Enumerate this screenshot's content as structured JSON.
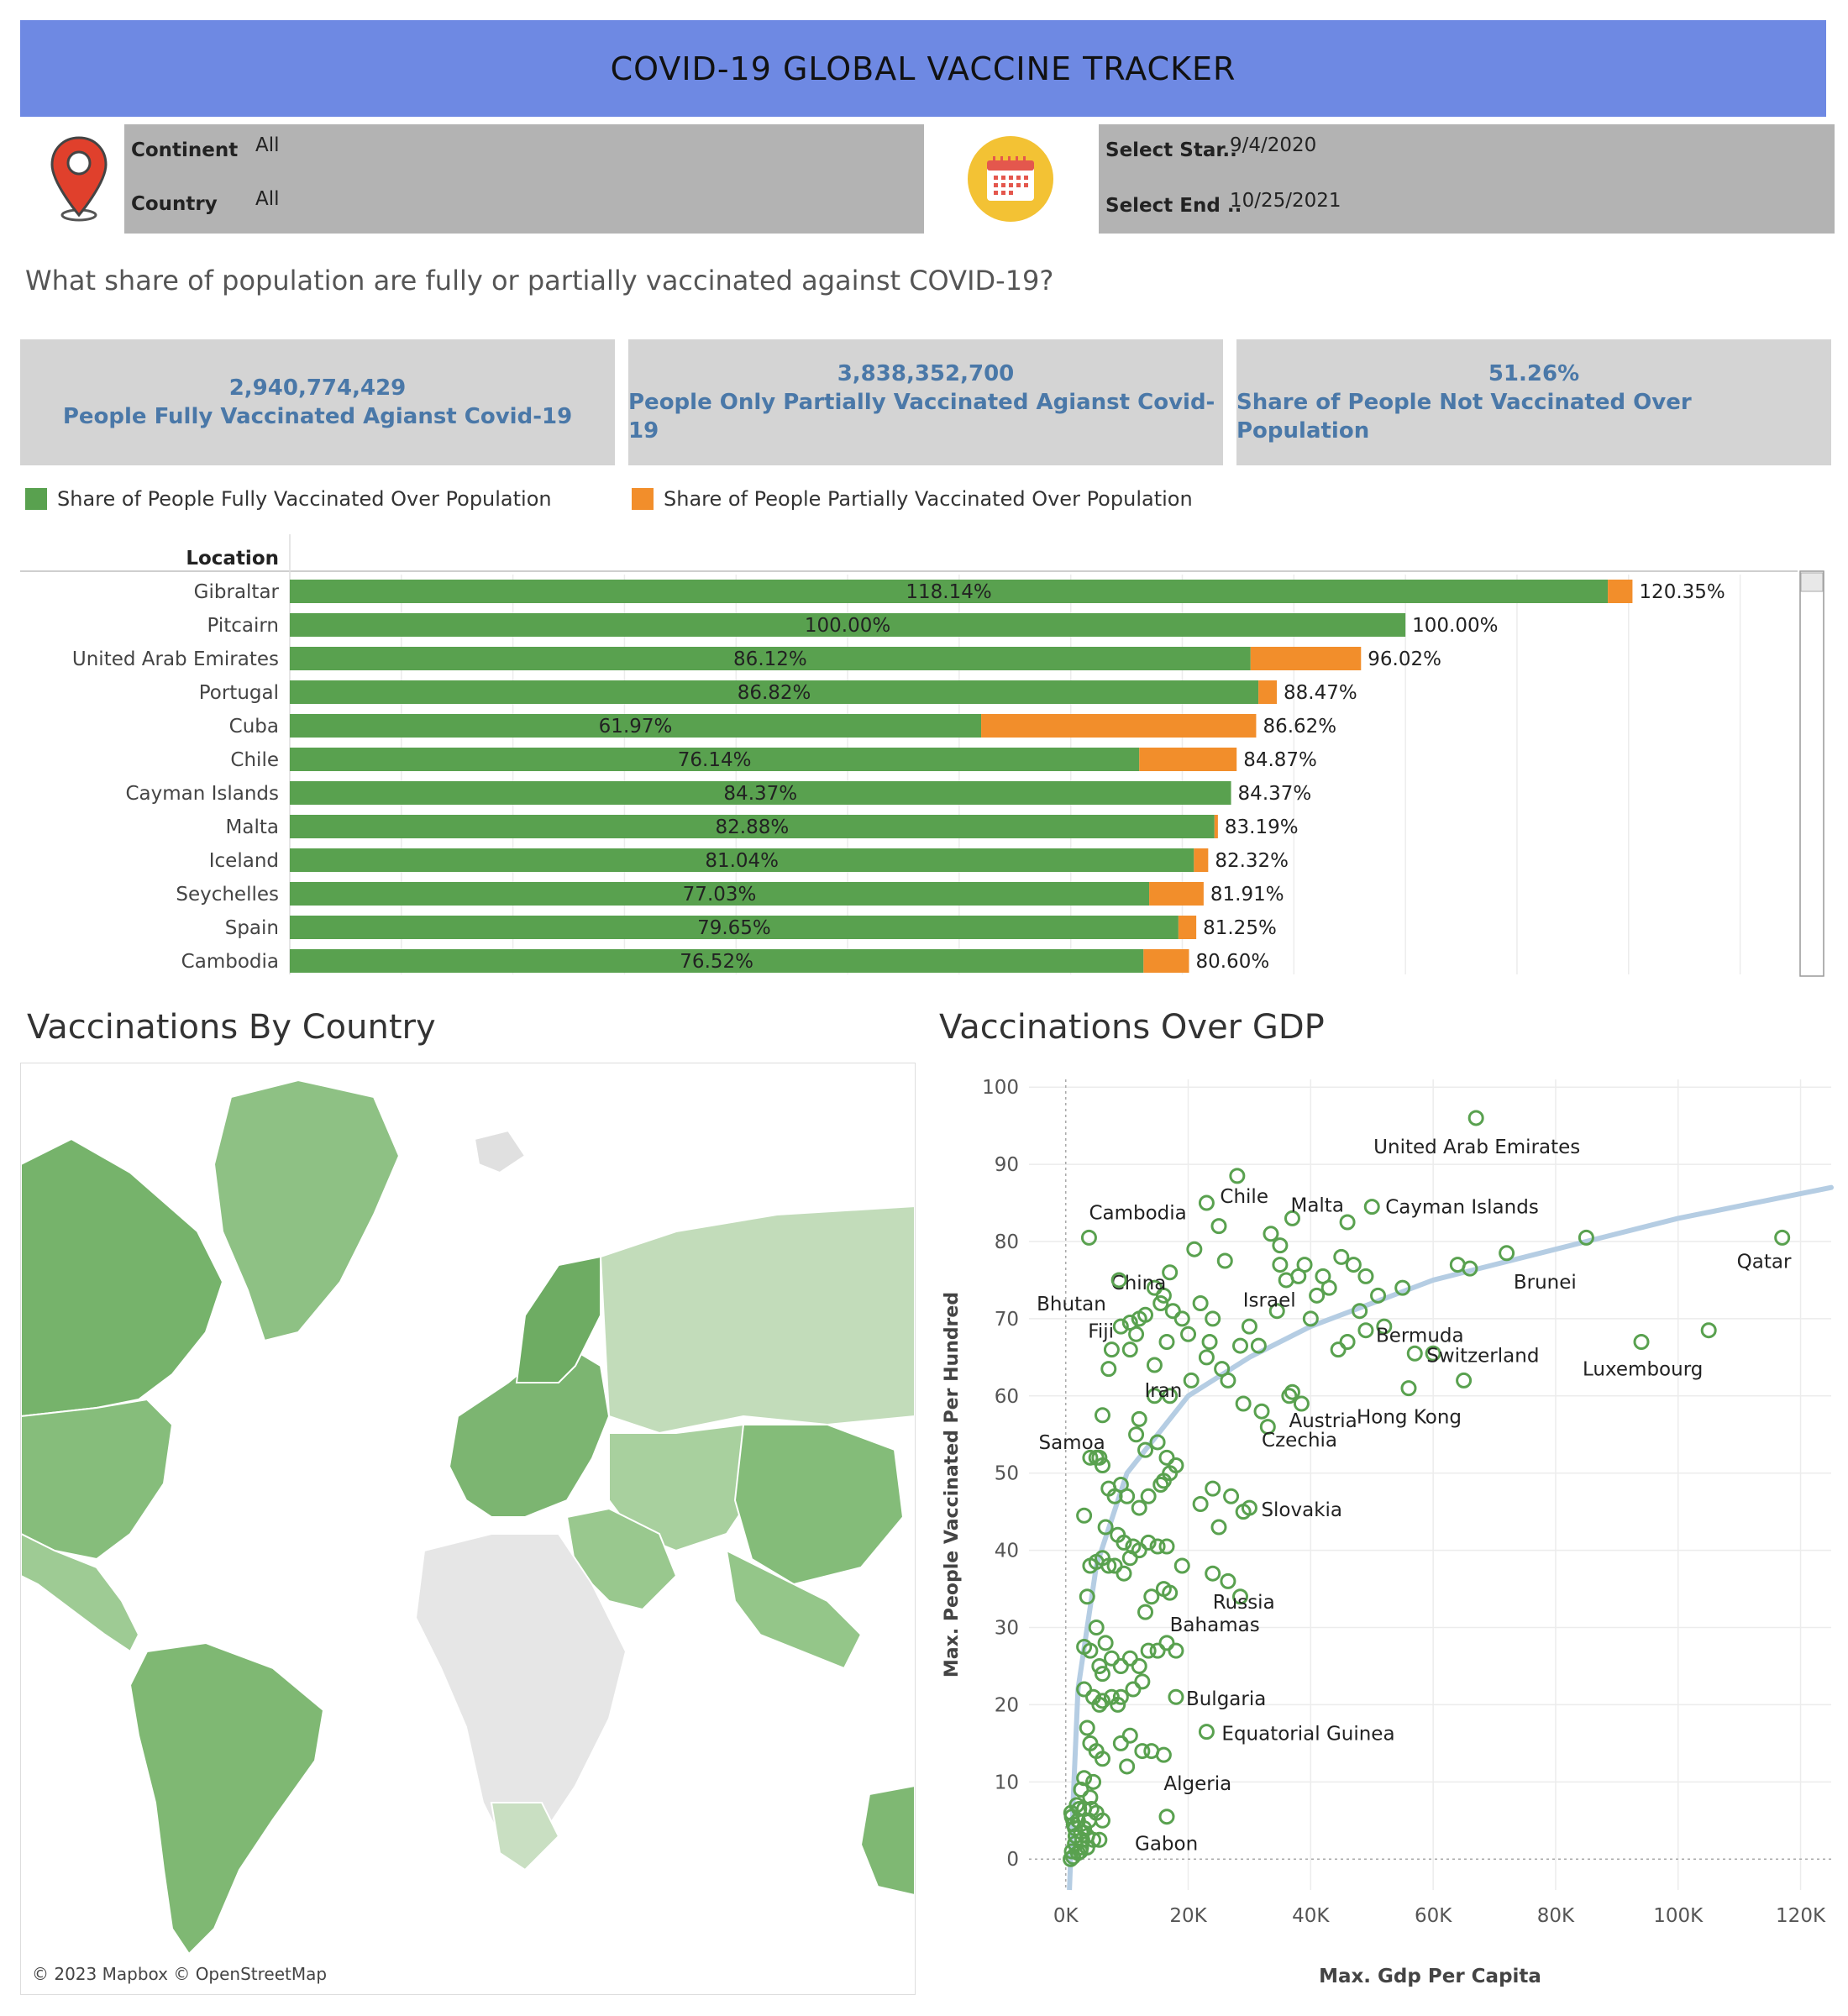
{
  "header": {
    "title": "COVID-19 GLOBAL VACCINE TRACKER"
  },
  "filters": {
    "continent_label": "Continent",
    "continent_value": "All",
    "country_label": "Country",
    "country_value": "All",
    "start_label": "Select Star..",
    "start_value": "9/4/2020",
    "end_label": "Select End ..",
    "end_value": "10/25/2021"
  },
  "icons": {
    "location": "map-pin-icon",
    "calendar": "calendar-icon"
  },
  "colors": {
    "title_bg": "#6e89e3",
    "fully": "#59a14f",
    "partial": "#f28e2b",
    "kpi_text": "#4a78a8",
    "trend": "#b5cde3"
  },
  "question": "What share of population are fully or partially vaccinated against COVID-19?",
  "kpis": [
    {
      "value": "2,940,774,429",
      "label": "People Fully Vaccinated Agianst Covid-19"
    },
    {
      "value": "3,838,352,700",
      "label": "People Only Partially Vaccinated Agianst Covid-19"
    },
    {
      "value": "51.26%",
      "label": "Share of People Not Vaccinated Over Population"
    }
  ],
  "legend": {
    "fully": "Share of People Fully Vaccinated Over Population",
    "partial": "Share of People Partially Vaccinated Over Population"
  },
  "sections": {
    "map_title": "Vaccinations By Country",
    "scatter_title": "Vaccinations Over GDP"
  },
  "map": {
    "attribution": "© 2023 Mapbox © OpenStreetMap"
  },
  "chart_data": [
    {
      "type": "bar",
      "stacked": true,
      "orientation": "horizontal",
      "row_header": "Location",
      "categories": [
        "Gibraltar",
        "Pitcairn",
        "United Arab Emirates",
        "Portugal",
        "Cuba",
        "Chile",
        "Cayman Islands",
        "Malta",
        "Iceland",
        "Seychelles",
        "Spain",
        "Cambodia"
      ],
      "series": [
        {
          "name": "Share of People Fully Vaccinated Over Population",
          "values": [
            118.14,
            100.0,
            86.12,
            86.82,
            61.97,
            76.14,
            84.37,
            82.88,
            81.04,
            77.03,
            79.65,
            76.52
          ]
        },
        {
          "name": "Share of People Partially Vaccinated Over Population",
          "values": [
            2.21,
            0.0,
            9.9,
            1.65,
            24.65,
            8.73,
            0.0,
            0.31,
            1.28,
            4.88,
            1.6,
            4.08
          ]
        }
      ],
      "fully_labels": [
        "118.14%",
        "100.00%",
        "86.12%",
        "86.82%",
        "61.97%",
        "76.14%",
        "84.37%",
        "82.88%",
        "81.04%",
        "77.03%",
        "79.65%",
        "76.52%"
      ],
      "total_labels": [
        "120.35%",
        "100.00%",
        "96.02%",
        "88.47%",
        "86.62%",
        "84.87%",
        "84.37%",
        "83.19%",
        "82.32%",
        "81.91%",
        "81.25%",
        "80.60%"
      ],
      "xlim": [
        0,
        135
      ]
    },
    {
      "type": "scatter",
      "title": "Vaccinations Over GDP",
      "xlabel": "Max. Gdp Per Capita",
      "ylabel": "Max. People Vaccinated Per Hundred",
      "xlim": [
        -6000,
        125000
      ],
      "ylim": [
        -4,
        101
      ],
      "x_ticks": [
        0,
        20000,
        40000,
        60000,
        80000,
        100000,
        120000
      ],
      "x_tick_labels": [
        "0K",
        "20K",
        "40K",
        "60K",
        "80K",
        "100K",
        "120K"
      ],
      "y_ticks": [
        0,
        10,
        20,
        30,
        40,
        50,
        60,
        70,
        80,
        90,
        100
      ],
      "y_tick_labels": [
        "0",
        "10",
        "20",
        "30",
        "40",
        "50",
        "60",
        "70",
        "80",
        "90",
        "100"
      ],
      "trend": {
        "type": "log",
        "points": [
          [
            800,
            0
          ],
          [
            2000,
            22
          ],
          [
            5000,
            38
          ],
          [
            10000,
            50
          ],
          [
            20000,
            60
          ],
          [
            30000,
            65
          ],
          [
            40000,
            69
          ],
          [
            60000,
            75
          ],
          [
            80000,
            79
          ],
          [
            100000,
            83
          ],
          [
            125000,
            87
          ]
        ]
      },
      "labeled_points": [
        {
          "label": "United Arab Emirates",
          "x": 67000,
          "y": 96
        },
        {
          "label": "Qatar",
          "x": 117000,
          "y": 80.5
        },
        {
          "label": "Cayman Islands",
          "x": 50000,
          "y": 84.5
        },
        {
          "label": "Malta",
          "x": 37000,
          "y": 83
        },
        {
          "label": "Chile",
          "x": 23000,
          "y": 85
        },
        {
          "label": "Cambodia",
          "x": 3800,
          "y": 80.5
        },
        {
          "label": "China",
          "x": 17000,
          "y": 76
        },
        {
          "label": "Bhutan",
          "x": 8700,
          "y": 75
        },
        {
          "label": "Brunei",
          "x": 66000,
          "y": 76.5
        },
        {
          "label": "Israel",
          "x": 38000,
          "y": 75.5
        },
        {
          "label": "Fiji",
          "x": 10500,
          "y": 69.5
        },
        {
          "label": "Bermuda",
          "x": 49000,
          "y": 68.5
        },
        {
          "label": "Switzerland",
          "x": 57000,
          "y": 65.5
        },
        {
          "label": "Luxembourg",
          "x": 94000,
          "y": 67
        },
        {
          "label": "Iran",
          "x": 14500,
          "y": 64
        },
        {
          "label": "Samoa",
          "x": 6000,
          "y": 57.5
        },
        {
          "label": "Austria",
          "x": 37000,
          "y": 60.5
        },
        {
          "label": "Hong Kong",
          "x": 56000,
          "y": 61
        },
        {
          "label": "Czechia",
          "x": 32000,
          "y": 58
        },
        {
          "label": "Slovakia",
          "x": 30000,
          "y": 45.5
        },
        {
          "label": "Russia",
          "x": 24000,
          "y": 37
        },
        {
          "label": "Bahamas",
          "x": 17000,
          "y": 34.5
        },
        {
          "label": "Bulgaria",
          "x": 18000,
          "y": 21
        },
        {
          "label": "Equatorial Guinea",
          "x": 23000,
          "y": 16.5
        },
        {
          "label": "Algeria",
          "x": 16000,
          "y": 13.5
        },
        {
          "label": "Gabon",
          "x": 16500,
          "y": 5.5
        }
      ],
      "other_points": [
        [
          28000,
          88.5
        ],
        [
          25000,
          82
        ],
        [
          21000,
          79
        ],
        [
          33500,
          81
        ],
        [
          35000,
          79.5
        ],
        [
          46000,
          82.5
        ],
        [
          26000,
          77.5
        ],
        [
          35000,
          77
        ],
        [
          39000,
          77
        ],
        [
          42000,
          75.5
        ],
        [
          45000,
          78
        ],
        [
          47000,
          77
        ],
        [
          49000,
          75.5
        ],
        [
          51000,
          73
        ],
        [
          55000,
          74
        ],
        [
          64000,
          77
        ],
        [
          72000,
          78.5
        ],
        [
          85000,
          80.5
        ],
        [
          105000,
          68.5
        ],
        [
          60000,
          65.5
        ],
        [
          65000,
          62
        ],
        [
          36000,
          75
        ],
        [
          43000,
          74
        ],
        [
          41000,
          73
        ],
        [
          48000,
          71
        ],
        [
          52000,
          69
        ],
        [
          46000,
          67
        ],
        [
          44500,
          66
        ],
        [
          40000,
          70
        ],
        [
          34500,
          71
        ],
        [
          30000,
          69
        ],
        [
          24000,
          70
        ],
        [
          22000,
          72
        ],
        [
          19000,
          70
        ],
        [
          17500,
          71
        ],
        [
          15500,
          72
        ],
        [
          14500,
          74
        ],
        [
          16000,
          73
        ],
        [
          12000,
          70
        ],
        [
          13000,
          70.5
        ],
        [
          11500,
          68
        ],
        [
          10500,
          66
        ],
        [
          9000,
          69
        ],
        [
          7500,
          66
        ],
        [
          7000,
          63.5
        ],
        [
          16500,
          67
        ],
        [
          20000,
          68
        ],
        [
          23500,
          67
        ],
        [
          26500,
          62
        ],
        [
          29000,
          59
        ],
        [
          33000,
          56
        ],
        [
          36500,
          60
        ],
        [
          38500,
          59
        ],
        [
          31500,
          66.5
        ],
        [
          28500,
          66.5
        ],
        [
          25500,
          63.5
        ],
        [
          23000,
          65
        ],
        [
          20500,
          62
        ],
        [
          17000,
          60
        ],
        [
          14500,
          60
        ],
        [
          12000,
          57
        ],
        [
          11500,
          55
        ],
        [
          13000,
          53
        ],
        [
          15000,
          54
        ],
        [
          16500,
          52
        ],
        [
          18000,
          51
        ],
        [
          16000,
          49
        ],
        [
          17000,
          50
        ],
        [
          15500,
          48.5
        ],
        [
          13500,
          47
        ],
        [
          12000,
          45.5
        ],
        [
          10000,
          47
        ],
        [
          9000,
          48.5
        ],
        [
          8000,
          47
        ],
        [
          7000,
          48
        ],
        [
          6000,
          51
        ],
        [
          5500,
          52
        ],
        [
          5000,
          52
        ],
        [
          4000,
          52
        ],
        [
          3000,
          44.5
        ],
        [
          6500,
          43
        ],
        [
          8500,
          42
        ],
        [
          9500,
          41
        ],
        [
          10500,
          39
        ],
        [
          11000,
          40.5
        ],
        [
          12000,
          40
        ],
        [
          13500,
          41
        ],
        [
          15000,
          40.5
        ],
        [
          16500,
          40.5
        ],
        [
          19000,
          38
        ],
        [
          22000,
          46
        ],
        [
          24000,
          48
        ],
        [
          25000,
          43
        ],
        [
          27000,
          47
        ],
        [
          29000,
          45
        ],
        [
          26500,
          36
        ],
        [
          28500,
          34
        ],
        [
          14000,
          34
        ],
        [
          13000,
          32
        ],
        [
          16000,
          35
        ],
        [
          4000,
          38
        ],
        [
          5000,
          38.5
        ],
        [
          6000,
          39
        ],
        [
          7000,
          38
        ],
        [
          8000,
          38
        ],
        [
          9500,
          37
        ],
        [
          3500,
          34
        ],
        [
          5000,
          30
        ],
        [
          6500,
          28
        ],
        [
          3000,
          27.5
        ],
        [
          4000,
          27
        ],
        [
          5500,
          25
        ],
        [
          6000,
          24
        ],
        [
          7500,
          26
        ],
        [
          9000,
          25
        ],
        [
          10500,
          26
        ],
        [
          12000,
          25
        ],
        [
          13500,
          27
        ],
        [
          15000,
          27
        ],
        [
          16500,
          28
        ],
        [
          18000,
          27
        ],
        [
          11000,
          22
        ],
        [
          12500,
          23
        ],
        [
          7500,
          21
        ],
        [
          8500,
          20
        ],
        [
          9000,
          21
        ],
        [
          6000,
          20.5
        ],
        [
          5500,
          20
        ],
        [
          4500,
          21
        ],
        [
          3000,
          22
        ],
        [
          3500,
          17
        ],
        [
          4000,
          15
        ],
        [
          5000,
          14
        ],
        [
          6000,
          13
        ],
        [
          9000,
          15
        ],
        [
          10500,
          16
        ],
        [
          12500,
          14
        ],
        [
          14000,
          14
        ],
        [
          10000,
          12
        ],
        [
          4500,
          10
        ],
        [
          3000,
          10.5
        ],
        [
          2500,
          9
        ],
        [
          4000,
          8
        ],
        [
          5000,
          6
        ],
        [
          6000,
          5
        ],
        [
          3000,
          6.5
        ],
        [
          2000,
          5
        ],
        [
          1500,
          4
        ],
        [
          2500,
          3.5
        ],
        [
          3500,
          3
        ],
        [
          4500,
          2.5
        ],
        [
          5500,
          2.5
        ],
        [
          1500,
          2
        ],
        [
          2500,
          1.5
        ],
        [
          3500,
          1.5
        ],
        [
          1000,
          1
        ],
        [
          2000,
          0.8
        ],
        [
          1200,
          0.3
        ],
        [
          800,
          0
        ],
        [
          2200,
          6.5
        ],
        [
          1800,
          7
        ],
        [
          1000,
          5.5
        ],
        [
          3000,
          4
        ],
        [
          2700,
          2.5
        ],
        [
          3800,
          5
        ],
        [
          4200,
          6.5
        ],
        [
          1600,
          3
        ],
        [
          900,
          6
        ],
        [
          1300,
          4.5
        ],
        [
          2400,
          1
        ]
      ]
    }
  ]
}
